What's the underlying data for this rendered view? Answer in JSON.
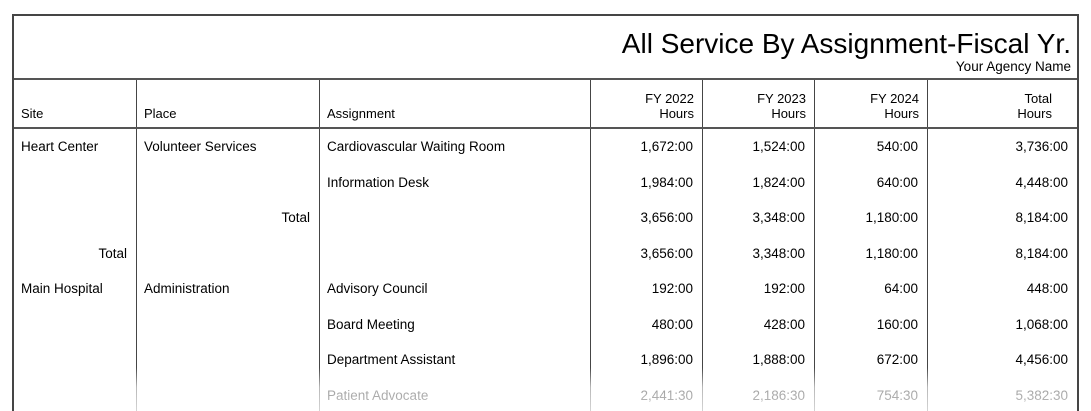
{
  "report": {
    "title": "All Service By Assignment-Fiscal Yr.",
    "agency_name": "Your Agency Name"
  },
  "styles": {
    "border_color": "#454545",
    "faded_text_color": "#9a9a9a"
  },
  "columns": [
    {
      "key": "site",
      "label_lines": [
        "Site"
      ],
      "align": "left"
    },
    {
      "key": "place",
      "label_lines": [
        "Place"
      ],
      "align": "left"
    },
    {
      "key": "assignment",
      "label_lines": [
        "Assignment"
      ],
      "align": "left"
    },
    {
      "key": "fy2022",
      "label_lines": [
        "FY 2022",
        "Hours"
      ],
      "align": "right"
    },
    {
      "key": "fy2023",
      "label_lines": [
        "FY 2023",
        "Hours"
      ],
      "align": "right"
    },
    {
      "key": "fy2024",
      "label_lines": [
        "FY 2024",
        "Hours"
      ],
      "align": "right"
    },
    {
      "key": "total",
      "label_lines": [
        "Total",
        "Hours"
      ],
      "align": "right"
    }
  ],
  "rows": [
    {
      "row_type": "detail",
      "cells": {
        "site": "Heart Center",
        "place": "Volunteer Services",
        "assignment": "Cardiovascular Waiting Room",
        "fy2022": "1,672:00",
        "fy2023": "1,524:00",
        "fy2024": "540:00",
        "total": "3,736:00"
      }
    },
    {
      "row_type": "detail",
      "cells": {
        "assignment": "Information Desk",
        "fy2022": "1,984:00",
        "fy2023": "1,824:00",
        "fy2024": "640:00",
        "total": "4,448:00"
      }
    },
    {
      "row_type": "place-total",
      "align_overrides": {
        "place": "right"
      },
      "cells": {
        "place": "Total",
        "fy2022": "3,656:00",
        "fy2023": "3,348:00",
        "fy2024": "1,180:00",
        "total": "8,184:00"
      }
    },
    {
      "row_type": "site-total",
      "align_overrides": {
        "site": "right"
      },
      "cells": {
        "site": "Total",
        "fy2022": "3,656:00",
        "fy2023": "3,348:00",
        "fy2024": "1,180:00",
        "total": "8,184:00"
      }
    },
    {
      "row_type": "detail",
      "cells": {
        "site": "Main Hospital",
        "place": "Administration",
        "assignment": "Advisory Council",
        "fy2022": "192:00",
        "fy2023": "192:00",
        "fy2024": "64:00",
        "total": "448:00"
      }
    },
    {
      "row_type": "detail",
      "cells": {
        "assignment": "Board Meeting",
        "fy2022": "480:00",
        "fy2023": "428:00",
        "fy2024": "160:00",
        "total": "1,068:00"
      }
    },
    {
      "row_type": "detail",
      "cells": {
        "assignment": "Department Assistant",
        "fy2022": "1,896:00",
        "fy2023": "1,888:00",
        "fy2024": "672:00",
        "total": "4,456:00"
      }
    },
    {
      "row_type": "detail",
      "clipped": true,
      "cells": {
        "assignment": "Patient Advocate",
        "fy2022": "2,441:30",
        "fy2023": "2,186:30",
        "fy2024": "754:30",
        "total": "5,382:30"
      }
    }
  ]
}
